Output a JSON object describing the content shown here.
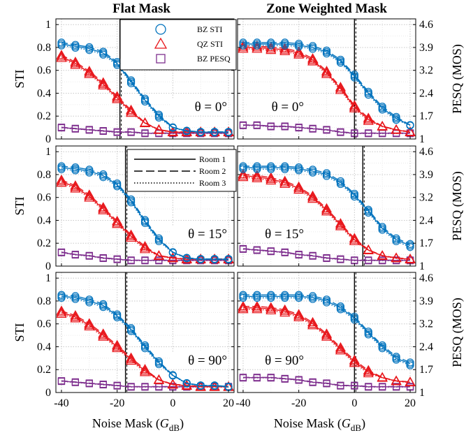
{
  "chart_data": {
    "type": "line",
    "columns": [
      {
        "title": "Flat Mask",
        "key": "flat"
      },
      {
        "title": "Zone Weighted Mask",
        "key": "zone"
      }
    ],
    "rows": [
      {
        "theta_label": "θ = 0°"
      },
      {
        "theta_label": "θ = 15°"
      },
      {
        "theta_label": "θ = 90°"
      }
    ],
    "x": [
      -40,
      -35,
      -30,
      -25,
      -20,
      -15,
      -10,
      -5,
      0,
      5,
      10,
      15,
      20
    ],
    "x_ticks": [
      "-40",
      "-20",
      "0",
      "20"
    ],
    "x_ticks_value": [
      -40,
      -20,
      0,
      20
    ],
    "xlim": [
      -42,
      22
    ],
    "xlabel": "Noise Mask (",
    "xlabel_var": "G",
    "xlabel_sub": "dB",
    "xlabel_close": ")",
    "ylabel_left": "STI",
    "ylabel_right": "PESQ (MOS)",
    "ylim_left": [
      0,
      1.05
    ],
    "y_ticks_left": [
      "0",
      "0.2",
      "0.4",
      "0.6",
      "0.8",
      "1"
    ],
    "y_ticks_left_value": [
      0,
      0.2,
      0.4,
      0.6,
      0.8,
      1
    ],
    "y_ticks_right": [
      "1",
      "1.7",
      "2.4",
      "3.2",
      "3.9",
      "4.6"
    ],
    "y_ticks_right_value": [
      1,
      1.7,
      2.4,
      3.2,
      3.9,
      4.6
    ],
    "grid": true,
    "legend_markers": [
      {
        "label": "BZ STI",
        "marker": "circle",
        "color": "#0072BD"
      },
      {
        "label": "QZ STI",
        "marker": "triangle",
        "color": "#E8161B"
      },
      {
        "label": "BZ PESQ",
        "marker": "square",
        "color": "#7E2F8E"
      }
    ],
    "legend_rooms": [
      {
        "label": "Room 1",
        "style": "solid"
      },
      {
        "label": "Room 2",
        "style": "dashed"
      },
      {
        "label": "Room 3",
        "style": "dotted"
      }
    ],
    "panels": [
      {
        "row": 0,
        "col": 0,
        "vline_x": -19,
        "bz_sti": [
          0.83,
          0.81,
          0.79,
          0.75,
          0.66,
          0.5,
          0.34,
          0.2,
          0.1,
          0.07,
          0.06,
          0.06,
          0.06
        ],
        "qz_sti": [
          0.72,
          0.66,
          0.58,
          0.48,
          0.36,
          0.24,
          0.14,
          0.08,
          0.06,
          0.06,
          0.06,
          0.06,
          0.06
        ],
        "bz_pesq": [
          0.1,
          0.09,
          0.08,
          0.07,
          0.06,
          0.06,
          0.05,
          0.05,
          0.05,
          0.05,
          0.05,
          0.05,
          0.05
        ]
      },
      {
        "row": 0,
        "col": 1,
        "vline_x": 0,
        "bz_sti": [
          0.83,
          0.83,
          0.83,
          0.83,
          0.82,
          0.8,
          0.76,
          0.68,
          0.55,
          0.4,
          0.27,
          0.18,
          0.12
        ],
        "qz_sti": [
          0.8,
          0.8,
          0.79,
          0.78,
          0.75,
          0.69,
          0.58,
          0.44,
          0.28,
          0.17,
          0.11,
          0.08,
          0.06
        ],
        "bz_pesq": [
          0.12,
          0.12,
          0.11,
          0.11,
          0.1,
          0.09,
          0.08,
          0.06,
          0.05,
          0.05,
          0.05,
          0.05,
          0.05
        ]
      },
      {
        "row": 1,
        "col": 0,
        "vline_x": -17,
        "bz_sti": [
          0.86,
          0.85,
          0.83,
          0.79,
          0.71,
          0.57,
          0.39,
          0.23,
          0.12,
          0.07,
          0.06,
          0.06,
          0.06
        ],
        "qz_sti": [
          0.74,
          0.69,
          0.61,
          0.5,
          0.38,
          0.26,
          0.16,
          0.09,
          0.07,
          0.06,
          0.06,
          0.06,
          0.06
        ],
        "bz_pesq": [
          0.12,
          0.1,
          0.09,
          0.07,
          0.06,
          0.05,
          0.05,
          0.05,
          0.05,
          0.05,
          0.05,
          0.05,
          0.05
        ]
      },
      {
        "row": 1,
        "col": 1,
        "vline_x": 3,
        "bz_sti": [
          0.86,
          0.86,
          0.86,
          0.86,
          0.85,
          0.83,
          0.8,
          0.73,
          0.62,
          0.48,
          0.33,
          0.23,
          0.18
        ],
        "qz_sti": [
          0.79,
          0.78,
          0.76,
          0.73,
          0.68,
          0.6,
          0.49,
          0.36,
          0.23,
          0.14,
          0.09,
          0.07,
          0.06
        ],
        "bz_pesq": [
          0.15,
          0.14,
          0.13,
          0.12,
          0.1,
          0.09,
          0.07,
          0.06,
          0.05,
          0.05,
          0.05,
          0.05,
          0.05
        ]
      },
      {
        "row": 2,
        "col": 0,
        "vline_x": -17,
        "bz_sti": [
          0.84,
          0.83,
          0.8,
          0.76,
          0.67,
          0.55,
          0.4,
          0.26,
          0.15,
          0.08,
          0.06,
          0.06,
          0.05
        ],
        "qz_sti": [
          0.7,
          0.66,
          0.59,
          0.5,
          0.4,
          0.29,
          0.19,
          0.11,
          0.07,
          0.06,
          0.05,
          0.05,
          0.05
        ],
        "bz_pesq": [
          0.1,
          0.09,
          0.08,
          0.07,
          0.06,
          0.05,
          0.05,
          0.05,
          0.05,
          0.05,
          0.05,
          0.05,
          0.05
        ]
      },
      {
        "row": 2,
        "col": 1,
        "vline_x": 0,
        "bz_sti": [
          0.84,
          0.84,
          0.84,
          0.84,
          0.84,
          0.83,
          0.8,
          0.74,
          0.65,
          0.52,
          0.4,
          0.3,
          0.25
        ],
        "qz_sti": [
          0.74,
          0.74,
          0.73,
          0.71,
          0.67,
          0.6,
          0.5,
          0.38,
          0.27,
          0.18,
          0.13,
          0.1,
          0.09
        ],
        "bz_pesq": [
          0.13,
          0.13,
          0.13,
          0.12,
          0.11,
          0.09,
          0.08,
          0.06,
          0.06,
          0.05,
          0.05,
          0.05,
          0.05
        ]
      }
    ]
  }
}
